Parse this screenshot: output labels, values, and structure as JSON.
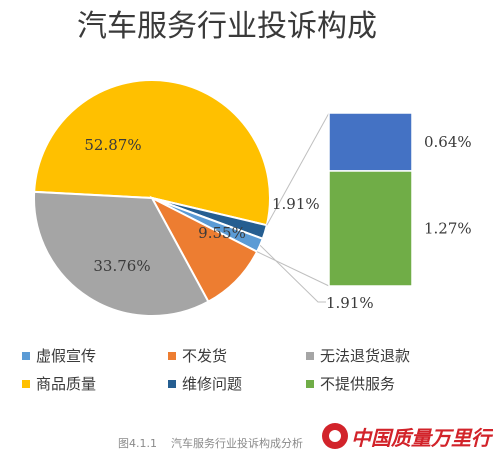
{
  "chart_data": {
    "type": "pie",
    "title": "汽车服务行业投诉构成",
    "slices": [
      {
        "name": "商品质量",
        "value": 52.87,
        "label": "52.87%",
        "color": "#FFC000"
      },
      {
        "name": "维修问题",
        "value": 1.91,
        "label": "1.91%",
        "color": "#255E91"
      },
      {
        "name": "虚假宣传",
        "value": 1.91,
        "label": "1.91%",
        "color": "#5B9BD5"
      },
      {
        "name": "不发货",
        "value": 9.55,
        "label": "9.55%",
        "color": "#ED7D31"
      },
      {
        "name": "无法退货退款",
        "value": 33.76,
        "label": "33.76%",
        "color": "#A5A5A5"
      }
    ],
    "sub_bar": {
      "source": "维修问题",
      "segments": [
        {
          "name": "维修问题",
          "value": 0.64,
          "label": "0.64%",
          "color": "#4472C4"
        },
        {
          "name": "不提供服务",
          "value": 1.27,
          "label": "1.27%",
          "color": "#70AD47"
        }
      ]
    },
    "legend": [
      {
        "name": "虚假宣传",
        "color": "#5B9BD5"
      },
      {
        "name": "不发货",
        "color": "#ED7D31"
      },
      {
        "name": "无法退货退款",
        "color": "#A5A5A5"
      },
      {
        "name": "商品质量",
        "color": "#FFC000"
      },
      {
        "name": "维修问题",
        "color": "#255E91"
      },
      {
        "name": "不提供服务",
        "color": "#70AD47"
      }
    ],
    "legend_position": "bottom"
  },
  "caption": {
    "figure_no": "图4.1.1",
    "text": "汽车服务行业投诉构成分析"
  },
  "watermark": {
    "text": "中国质量万里行"
  }
}
